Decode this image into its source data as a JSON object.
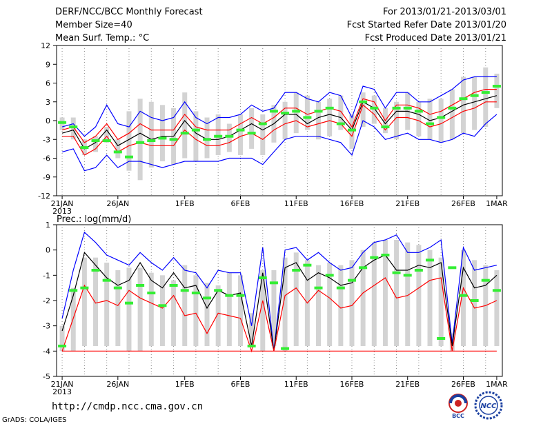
{
  "header": {
    "title": "DERF/NCC/BCC Monthly Forecast",
    "member_size": "Member Size=40",
    "variable": "Mean Surf. Temp.: °C",
    "period": "For 2013/01/21-2013/03/01",
    "fcst_started": "Fcst Started Refer Date 2013/01/20",
    "fcst_produced": "Fcst Produced Date 2013/01/21"
  },
  "footer": {
    "url": "http://cmdp.ncc.cma.gov.cn",
    "credit": "GrADS: COLA/IGES",
    "logo_bcc": "BCC",
    "logo_ncc": "NCC"
  },
  "colors": {
    "bar": "#d3d3d3",
    "blue": "#0000ff",
    "red": "#ff0000",
    "black": "#000000",
    "green": "#33ee33"
  },
  "chart_data": [
    {
      "type": "line",
      "title": "Mean Surf. Temp.: °C",
      "x_tick_labels": [
        "21JAN",
        "26JAN",
        "1FEB",
        "6FEB",
        "11FEB",
        "16FEB",
        "21FEB",
        "26FEB",
        "1MAR"
      ],
      "x_tick_index": [
        0,
        5,
        11,
        16,
        21,
        26,
        31,
        36,
        39
      ],
      "year_label": "2013",
      "ylim": [
        -12,
        12
      ],
      "yticks": [
        -12,
        -9,
        -6,
        -3,
        0,
        3,
        6,
        9,
        12
      ],
      "bars_low": [
        -1.5,
        -3.0,
        -5.5,
        -5.0,
        -3.5,
        -6.0,
        -8.0,
        -9.5,
        -7.5,
        -6.5,
        -7.0,
        -6.0,
        -6.5,
        -6.0,
        -5.5,
        -5.0,
        -5.5,
        -4.5,
        -5.5,
        -3.5,
        -3.0,
        -2.0,
        -1.5,
        -3.0,
        -2.5,
        -1.5,
        -4.5,
        -1.0,
        -0.5,
        -2.0,
        -3.0,
        -1.5,
        -2.5,
        -3.0,
        -3.5,
        -3.0,
        -2.0,
        -1.5,
        -1.0,
        2.0
      ],
      "bars_high": [
        0.5,
        0.5,
        -3.0,
        -2.5,
        -1.0,
        -3.0,
        1.5,
        3.5,
        3.0,
        2.5,
        2.0,
        4.5,
        1.5,
        0.5,
        1.0,
        -0.5,
        1.0,
        2.0,
        1.0,
        2.5,
        3.0,
        4.5,
        4.0,
        3.0,
        3.5,
        4.0,
        1.0,
        4.5,
        4.0,
        2.0,
        3.0,
        4.5,
        3.0,
        3.5,
        3.5,
        5.0,
        7.0,
        7.0,
        8.5,
        7.5
      ],
      "series": [
        {
          "name": "max",
          "color_key": "blue",
          "values": [
            -1.0,
            -0.5,
            -2.5,
            -1.0,
            2.5,
            -0.5,
            -1.0,
            1.5,
            0.5,
            0.0,
            0.5,
            3.0,
            0.5,
            -0.5,
            0.5,
            0.5,
            1.0,
            2.5,
            1.5,
            2.0,
            4.5,
            4.5,
            3.5,
            3.0,
            4.5,
            4.0,
            0.5,
            5.5,
            5.0,
            2.0,
            4.5,
            4.5,
            3.0,
            3.0,
            4.0,
            5.0,
            6.5,
            7.0,
            7.0,
            7.0
          ]
        },
        {
          "name": "mean_upper",
          "color_key": "red",
          "values": [
            -1.5,
            -1.0,
            -3.5,
            -2.5,
            -0.5,
            -3.0,
            -2.0,
            -0.5,
            -1.5,
            -1.5,
            -1.5,
            1.0,
            -1.0,
            -1.5,
            -1.5,
            -1.5,
            -0.5,
            0.5,
            -0.5,
            0.5,
            2.0,
            2.0,
            1.0,
            1.5,
            2.0,
            1.5,
            -1.0,
            3.5,
            3.0,
            0.0,
            2.5,
            2.5,
            2.0,
            1.0,
            1.5,
            2.5,
            3.5,
            4.5,
            5.0,
            5.0
          ]
        },
        {
          "name": "mean",
          "color_key": "black",
          "values": [
            -2.0,
            -1.5,
            -4.5,
            -3.5,
            -1.5,
            -4.0,
            -3.0,
            -2.0,
            -3.0,
            -2.5,
            -2.5,
            0.0,
            -2.0,
            -3.0,
            -3.0,
            -2.5,
            -1.5,
            -0.5,
            -1.5,
            -0.5,
            1.0,
            1.0,
            -0.5,
            0.5,
            1.0,
            0.5,
            -1.5,
            3.0,
            2.0,
            -0.5,
            1.5,
            1.5,
            1.0,
            0.0,
            0.5,
            1.5,
            2.5,
            3.0,
            3.5,
            4.0
          ]
        },
        {
          "name": "mean_lower",
          "color_key": "red",
          "values": [
            -2.5,
            -2.5,
            -5.5,
            -4.5,
            -2.5,
            -5.0,
            -4.0,
            -3.5,
            -4.0,
            -4.0,
            -4.0,
            -1.5,
            -3.0,
            -4.0,
            -4.0,
            -3.5,
            -2.5,
            -2.0,
            -3.0,
            -1.5,
            -0.5,
            0.0,
            -1.0,
            -0.5,
            0.0,
            -0.5,
            -2.5,
            2.5,
            1.0,
            -1.5,
            0.5,
            0.5,
            0.0,
            -1.0,
            -0.5,
            0.5,
            1.5,
            2.0,
            3.0,
            3.0
          ]
        },
        {
          "name": "min",
          "color_key": "blue",
          "values": [
            -5.0,
            -4.5,
            -8.0,
            -7.5,
            -5.5,
            -7.5,
            -6.5,
            -6.5,
            -7.0,
            -7.5,
            -7.0,
            -6.5,
            -6.5,
            -6.5,
            -6.5,
            -6.0,
            -6.0,
            -6.0,
            -7.0,
            -5.0,
            -3.0,
            -2.5,
            -2.5,
            -2.5,
            -3.0,
            -3.5,
            -5.5,
            0.0,
            -1.0,
            -3.0,
            -2.5,
            -2.0,
            -3.0,
            -3.0,
            -3.5,
            -3.0,
            -2.0,
            -2.5,
            -0.5,
            1.0
          ]
        }
      ],
      "markers": {
        "name": "obs",
        "color_key": "green",
        "values": [
          -0.3,
          -1.0,
          -4.3,
          -3.2,
          -3.2,
          -5.0,
          -5.8,
          -3.5,
          -3.2,
          -2.8,
          -3.0,
          -2.0,
          -1.5,
          -3.0,
          -2.5,
          -2.5,
          -1.5,
          -2.0,
          -0.5,
          1.5,
          1.2,
          1.5,
          0.5,
          1.5,
          2.0,
          -0.5,
          -1.5,
          3.0,
          2.0,
          -1.0,
          2.0,
          2.0,
          1.5,
          -0.5,
          0.5,
          2.0,
          3.5,
          4.0,
          4.5,
          5.5
        ]
      }
    },
    {
      "type": "line",
      "title": "Prec.: log(mm/d)",
      "x_tick_labels": [
        "21JAN",
        "26JAN",
        "1FEB",
        "6FEB",
        "11FEB",
        "16FEB",
        "21FEB",
        "26FEB",
        "1MAR"
      ],
      "x_tick_index": [
        0,
        5,
        11,
        16,
        21,
        26,
        31,
        36,
        39
      ],
      "year_label": "2013",
      "ylim": [
        -5,
        1
      ],
      "yticks": [
        -5,
        -4,
        -3,
        -2,
        -1,
        0,
        1
      ],
      "bars_low": [
        -4.0,
        -4.0,
        -3.8,
        -3.8,
        -3.8,
        -3.8,
        -4.0,
        -4.0,
        -3.8,
        -3.8,
        -3.8,
        -3.8,
        -3.8,
        -3.8,
        -3.8,
        -3.8,
        -3.8,
        -3.8,
        -4.0,
        -3.8,
        -4.0,
        -3.8,
        -3.8,
        -3.8,
        -3.8,
        -3.8,
        -3.8,
        -3.8,
        -3.8,
        -3.8,
        -3.8,
        -3.8,
        -3.8,
        -3.8,
        -3.8,
        -4.0,
        -3.8,
        -3.8,
        -3.8,
        -3.8
      ],
      "bars_high": [
        -3.0,
        -1.5,
        -0.3,
        -0.3,
        -0.5,
        -0.8,
        -0.7,
        -0.7,
        -0.9,
        -1.0,
        -1.2,
        -0.6,
        -1.0,
        -1.3,
        -1.4,
        -0.9,
        -1.0,
        -2.5,
        -0.8,
        -0.8,
        -0.3,
        -0.1,
        -0.4,
        -0.6,
        -0.5,
        -0.6,
        -0.4,
        0.0,
        0.3,
        0.4,
        0.4,
        0.3,
        0.2,
        0.0,
        -0.3,
        -3.3,
        0.0,
        -0.4,
        -0.6,
        -0.8
      ],
      "series": [
        {
          "name": "max",
          "color_key": "blue",
          "values": [
            -2.7,
            -0.8,
            0.7,
            0.3,
            -0.2,
            -0.4,
            -0.6,
            -0.1,
            -0.5,
            -0.8,
            -0.3,
            -0.8,
            -0.9,
            -1.5,
            -0.8,
            -0.9,
            -0.9,
            -3.0,
            0.1,
            -4.0,
            0.0,
            0.1,
            -0.4,
            -0.1,
            -0.5,
            -0.8,
            -0.7,
            -0.1,
            0.3,
            0.4,
            0.6,
            -0.1,
            -0.1,
            0.1,
            0.4,
            -3.7,
            0.1,
            -0.8,
            -0.7,
            -0.6
          ]
        },
        {
          "name": "mean",
          "color_key": "black",
          "values": [
            -3.2,
            -1.8,
            -0.1,
            -0.6,
            -1.1,
            -1.4,
            -1.2,
            -0.5,
            -1.2,
            -1.5,
            -0.9,
            -1.5,
            -1.4,
            -2.3,
            -1.6,
            -1.8,
            -1.7,
            -3.8,
            -0.9,
            -4.0,
            -0.7,
            -0.5,
            -1.2,
            -0.9,
            -1.1,
            -1.4,
            -1.3,
            -0.7,
            -0.4,
            -0.2,
            -0.8,
            -0.8,
            -0.6,
            -0.7,
            -0.5,
            -3.8,
            -0.7,
            -1.5,
            -1.4,
            -1.0
          ]
        },
        {
          "name": "mean_lower",
          "color_key": "red",
          "values": [
            -4.0,
            -2.7,
            -1.4,
            -2.1,
            -2.0,
            -2.2,
            -1.6,
            -1.9,
            -2.1,
            -2.3,
            -1.8,
            -2.6,
            -2.5,
            -3.3,
            -2.5,
            -2.6,
            -2.7,
            -4.0,
            -2.0,
            -4.0,
            -1.8,
            -1.5,
            -2.1,
            -1.6,
            -1.9,
            -2.3,
            -2.2,
            -1.7,
            -1.4,
            -1.1,
            -1.9,
            -1.8,
            -1.5,
            -1.2,
            -1.1,
            -4.0,
            -1.5,
            -2.3,
            -2.2,
            -2.0
          ]
        },
        {
          "name": "min",
          "color_key": "red",
          "values": [
            -4.0,
            -4.0,
            -4.0,
            -4.0,
            -4.0,
            -4.0,
            -4.0,
            -4.0,
            -4.0,
            -4.0,
            -4.0,
            -4.0,
            -4.0,
            -4.0,
            -4.0,
            -4.0,
            -4.0,
            -4.0,
            -4.0,
            -4.0,
            -4.0,
            -4.0,
            -4.0,
            -4.0,
            -4.0,
            -4.0,
            -4.0,
            -4.0,
            -4.0,
            -4.0,
            -4.0,
            -4.0,
            -4.0,
            -4.0,
            -4.0,
            -4.0,
            -4.0,
            -4.0,
            -4.0,
            -4.0
          ]
        }
      ],
      "markers": {
        "name": "obs",
        "color_key": "green",
        "values": [
          -3.8,
          -1.6,
          -1.5,
          -0.8,
          -1.2,
          -1.5,
          -2.1,
          -1.4,
          -1.7,
          -2.2,
          -1.4,
          -1.6,
          -1.7,
          -1.9,
          -1.6,
          -1.8,
          -1.8,
          -3.8,
          -1.1,
          -1.3,
          -3.9,
          -0.8,
          -0.6,
          -1.5,
          -1.0,
          -1.5,
          -1.2,
          -0.7,
          -0.3,
          -0.2,
          -0.9,
          -1.0,
          -0.8,
          -0.4,
          -3.5,
          -0.7,
          -1.8,
          -2.0,
          -1.2,
          -1.6
        ]
      }
    }
  ]
}
